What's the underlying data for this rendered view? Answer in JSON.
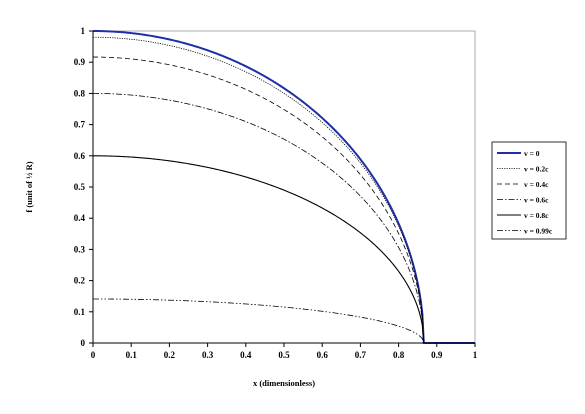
{
  "chart_data": {
    "type": "line",
    "xlabel": "x (dimensionless)",
    "ylabel": "f (unit of ½ R)",
    "xlim": [
      0,
      1
    ],
    "ylim": [
      0,
      1
    ],
    "x_ticks": [
      "0",
      "0.1",
      "0.2",
      "0.3",
      "0.4",
      "0.5",
      "0.6",
      "0.7",
      "0.8",
      "0.9",
      "1"
    ],
    "y_ticks": [
      "0",
      "0.1",
      "0.2",
      "0.3",
      "0.4",
      "0.5",
      "0.6",
      "0.7",
      "0.8",
      "0.9",
      "1"
    ],
    "grid": false,
    "legend_position": "right",
    "x_max_value": 0.866,
    "x": [
      0,
      0.05,
      0.1,
      0.15,
      0.2,
      0.25,
      0.3,
      0.35,
      0.4,
      0.45,
      0.5,
      0.55,
      0.6,
      0.65,
      0.7,
      0.75,
      0.8,
      0.82,
      0.84,
      0.85,
      0.86,
      0.866,
      1.0
    ],
    "series": [
      {
        "name": "v = 0",
        "color": "#1f2fa8",
        "style": "solid",
        "width": 2.0,
        "values": [
          1.0,
          0.9983,
          0.9933,
          0.9849,
          0.973,
          0.9574,
          0.9381,
          0.9146,
          0.8866,
          0.8536,
          0.8148,
          0.7692,
          0.7153,
          0.6506,
          0.5715,
          0.4702,
          0.3277,
          0.2529,
          0.1503,
          0.0848,
          0.0165,
          0.0,
          0.0
        ]
      },
      {
        "name": "v = 0.2c",
        "color": "#000000",
        "style": "dotted",
        "width": 0.8,
        "values": [
          0.98,
          0.9783,
          0.9734,
          0.9652,
          0.9535,
          0.9383,
          0.9193,
          0.8963,
          0.8689,
          0.8366,
          0.7985,
          0.7538,
          0.701,
          0.6376,
          0.5601,
          0.4608,
          0.3211,
          0.2478,
          0.1473,
          0.0831,
          0.0162,
          0.0,
          0.0
        ]
      },
      {
        "name": "v = 0.4c",
        "color": "#000000",
        "style": "dashed",
        "width": 0.8,
        "values": [
          0.9165,
          0.915,
          0.9104,
          0.9027,
          0.8918,
          0.8775,
          0.8598,
          0.8382,
          0.8126,
          0.7823,
          0.7468,
          0.705,
          0.6556,
          0.5963,
          0.5238,
          0.431,
          0.3003,
          0.2318,
          0.1378,
          0.0777,
          0.0151,
          0.0,
          0.0
        ]
      },
      {
        "name": "v = 0.6c",
        "color": "#000000",
        "style": "dashdot",
        "width": 0.8,
        "values": [
          0.8,
          0.7987,
          0.7946,
          0.7879,
          0.7784,
          0.7659,
          0.7505,
          0.7317,
          0.7093,
          0.6829,
          0.6518,
          0.6154,
          0.5722,
          0.5205,
          0.4572,
          0.3762,
          0.2622,
          0.2023,
          0.1202,
          0.0678,
          0.0132,
          0.0,
          0.0
        ]
      },
      {
        "name": "v = 0.8c",
        "color": "#000000",
        "style": "solid",
        "width": 1.1,
        "values": [
          0.6,
          0.599,
          0.596,
          0.5909,
          0.5838,
          0.5744,
          0.5629,
          0.5488,
          0.532,
          0.5122,
          0.4889,
          0.4615,
          0.4292,
          0.3904,
          0.3429,
          0.2821,
          0.1966,
          0.1517,
          0.0902,
          0.0509,
          0.0099,
          0.0,
          0.0
        ]
      },
      {
        "name": "v = 0.99c",
        "color": "#000000",
        "style": "dashdotdot",
        "width": 0.8,
        "values": [
          0.1411,
          0.1409,
          0.1402,
          0.139,
          0.1373,
          0.1351,
          0.1324,
          0.1291,
          0.1251,
          0.1204,
          0.115,
          0.1085,
          0.1009,
          0.0918,
          0.0806,
          0.0663,
          0.0462,
          0.0357,
          0.0212,
          0.012,
          0.0023,
          0.0,
          0.0
        ]
      }
    ]
  }
}
